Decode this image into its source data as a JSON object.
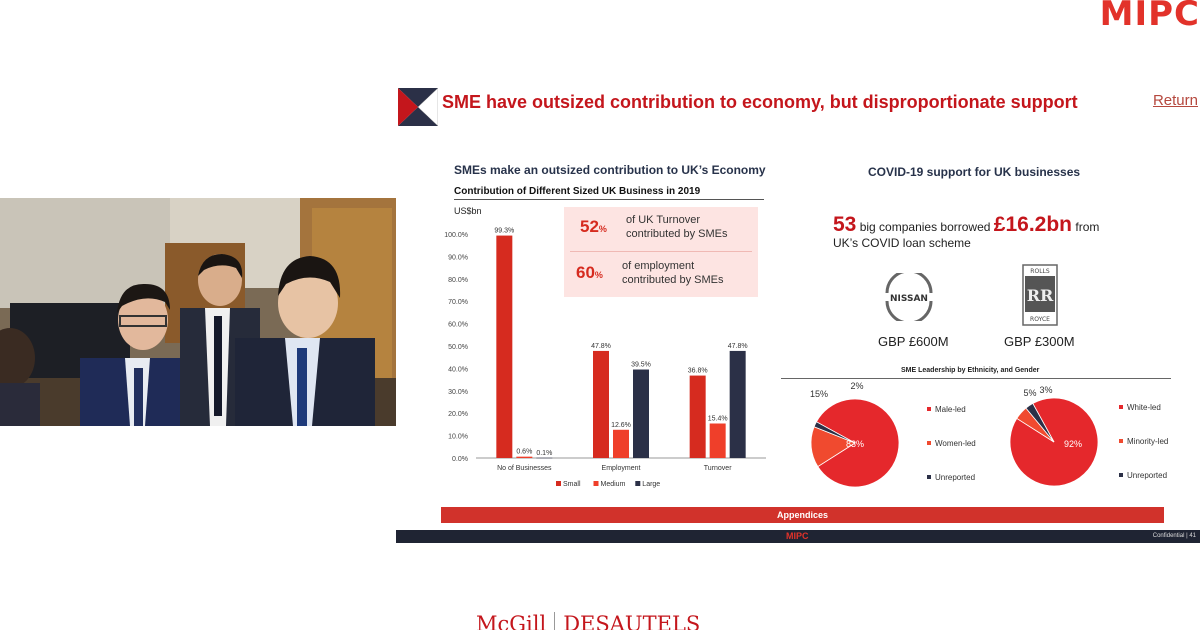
{
  "brand_top": "MIPC",
  "slide": {
    "title": "SME have outsized contribution to economy, but disproportionate support",
    "return_link": "Return",
    "left_section_title": "SMEs make an outsized contribution to UK’s Economy",
    "chart_title": "Contribution of Different Sized UK Business in 2019",
    "callout": {
      "pct1": "52",
      "pct_sign": "%",
      "text1_line1": "of UK Turnover",
      "text1_line2": "contributed by SMEs",
      "pct2": "60",
      "text2_line1": "of employment",
      "text2_line2": "contributed by SMEs"
    },
    "right_section_title": "COVID-19 support for UK businesses",
    "covid": {
      "count": "53",
      "text_a": "big companies borrowed",
      "amount": "£16.2bn",
      "text_b": "from",
      "line2": "UK’s COVID loan scheme"
    },
    "logos": [
      {
        "name": "NISSAN",
        "value": "GBP £600M"
      },
      {
        "name_top": "ROLLS",
        "name_mid": "RR",
        "name_bottom": "ROYCE",
        "value": "GBP £300M"
      }
    ],
    "pie_title": "SME Leadership by Ethnicity, and Gender",
    "appendices": "Appendices",
    "footer_brand": "MIPC",
    "footer_confidential": "Confidential | 41"
  },
  "bottom_brand": {
    "left": "McGill",
    "right": "DESAUTELS"
  },
  "colors": {
    "small": "#d62b1f",
    "medium": "#ef3f2a",
    "large": "#2b3047",
    "accent": "#c4161c"
  },
  "chart_data": [
    {
      "type": "bar",
      "title": "Contribution of Different Sized UK Business in 2019",
      "ylabel": "US$bn",
      "categories": [
        "No of Businesses",
        "Employment",
        "Turnover"
      ],
      "series": [
        {
          "name": "Small",
          "values": [
            99.3,
            47.8,
            36.8
          ]
        },
        {
          "name": "Medium",
          "values": [
            0.6,
            12.6,
            15.4
          ]
        },
        {
          "name": "Large",
          "values": [
            0.1,
            39.5,
            47.8
          ]
        }
      ],
      "data_labels": [
        [
          "99.3%",
          "0.6%",
          "0.1%"
        ],
        [
          "47.8%",
          "12.6%",
          "39.5%"
        ],
        [
          "36.8%",
          "15.4%",
          "47.8%"
        ]
      ],
      "y_ticks": [
        "0.0%",
        "10.0%",
        "20.0%",
        "30.0%",
        "40.0%",
        "50.0%",
        "60.0%",
        "70.0%",
        "80.0%",
        "90.0%",
        "100.0%"
      ],
      "ylim": [
        0,
        100
      ],
      "legend": "bottom",
      "grid": false
    },
    {
      "type": "pie",
      "title": "SME Leadership by Ethnicity, and Gender",
      "labels": [
        "Male-led",
        "Women-led",
        "Unreported"
      ],
      "values": [
        83,
        15,
        2
      ],
      "data_labels": [
        "83%",
        "15%",
        "2%"
      ],
      "legend": "right"
    },
    {
      "type": "pie",
      "labels": [
        "White-led",
        "Minority-led",
        "Unreported"
      ],
      "values": [
        92,
        5,
        3
      ],
      "data_labels": [
        "92%",
        "5%",
        "3%"
      ],
      "legend": "right"
    }
  ]
}
